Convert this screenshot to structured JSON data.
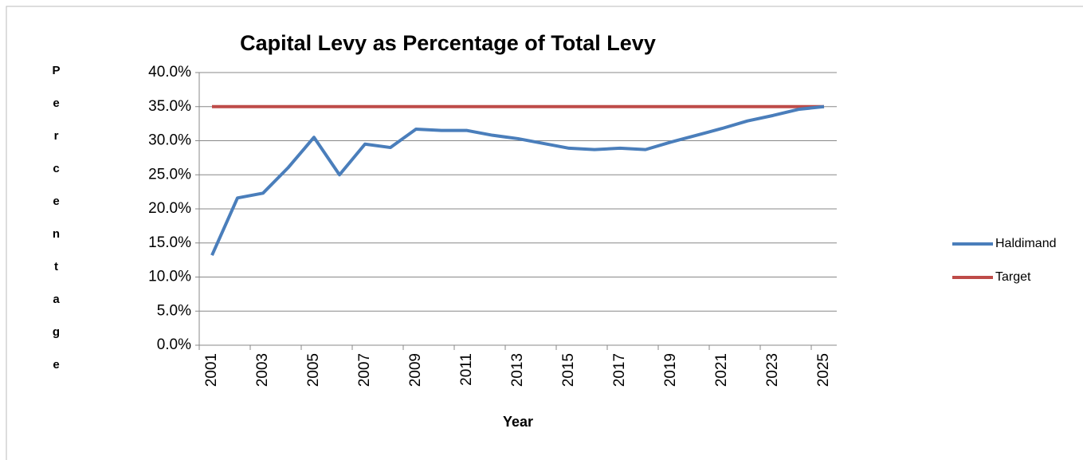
{
  "chart_data": {
    "type": "line",
    "title": "Capital Levy as Percentage of Total Levy",
    "xlabel": "Year",
    "ylabel": "Percentage",
    "categories": [
      "2001",
      null,
      "2003",
      null,
      "2005",
      null,
      "2007",
      null,
      "2009",
      null,
      "2011",
      null,
      "2013",
      null,
      "2015",
      null,
      "2017",
      null,
      "2019",
      null,
      "2021",
      null,
      "2023",
      null,
      "2025"
    ],
    "series": [
      {
        "name": "Haldimand",
        "color": "#4a7ebb",
        "values": [
          13.2,
          21.6,
          22.3,
          26.1,
          30.5,
          25.0,
          29.5,
          29.0,
          31.7,
          31.5,
          31.5,
          30.8,
          30.3,
          29.6,
          28.9,
          28.7,
          28.9,
          28.7,
          29.8,
          30.8,
          31.8,
          32.9,
          33.7,
          34.6,
          35.0
        ]
      },
      {
        "name": "Target",
        "color": "#be4b48",
        "values": [
          35,
          35,
          35,
          35,
          35,
          35,
          35,
          35,
          35,
          35,
          35,
          35,
          35,
          35,
          35,
          35,
          35,
          35,
          35,
          35,
          35,
          35,
          35,
          35,
          35
        ]
      }
    ],
    "ylim": [
      0,
      40
    ],
    "yticks": [
      {
        "value": 0,
        "label": "0.0%"
      },
      {
        "value": 5,
        "label": "5.0%"
      },
      {
        "value": 10,
        "label": "10.0%"
      },
      {
        "value": 15,
        "label": "15.0%"
      },
      {
        "value": 20,
        "label": "20.0%"
      },
      {
        "value": 25,
        "label": "25.0%"
      },
      {
        "value": 30,
        "label": "30.0%"
      },
      {
        "value": 35,
        "label": "35.0%"
      },
      {
        "value": 40,
        "label": "40.0%"
      }
    ],
    "grid": true,
    "legend": "right"
  }
}
